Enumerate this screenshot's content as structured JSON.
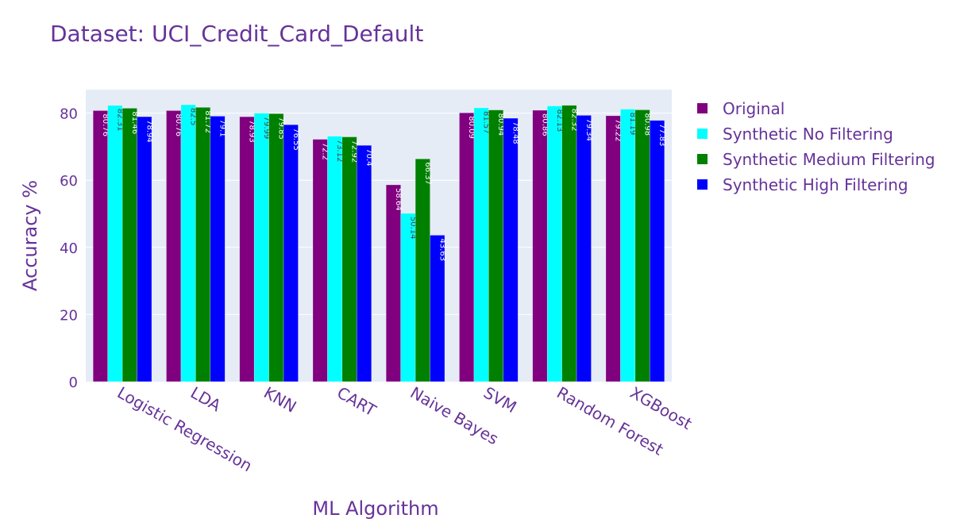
{
  "chart_data": {
    "type": "bar",
    "title": "Dataset: UCI_Credit_Card_Default",
    "xlabel": "ML Algorithm",
    "ylabel": "Accuracy %",
    "ylim": [
      0,
      87
    ],
    "yticks": [
      0,
      20,
      40,
      60,
      80
    ],
    "grid": true,
    "legend_placement": "right",
    "categories": [
      "Logistic Regression",
      "LDA",
      "KNN",
      "CART",
      "Naive Bayes",
      "SVM",
      "Random Forest",
      "XGBoost"
    ],
    "series": [
      {
        "name": "Original",
        "color": "#800080",
        "label_color": "#ffffff",
        "values": [
          80.76,
          80.76,
          78.93,
          72.2,
          58.64,
          80.09,
          80.86,
          79.22
        ]
      },
      {
        "name": "Synthetic No Filtering",
        "color": "#00ffff",
        "label_color": "#444444",
        "values": [
          82.31,
          82.5,
          79.99,
          73.12,
          50.14,
          81.57,
          82.13,
          81.19
        ]
      },
      {
        "name": "Synthetic Medium Filtering",
        "color": "#008000",
        "label_color": "#ffffff",
        "values": [
          81.46,
          81.72,
          79.85,
          72.92,
          66.37,
          80.94,
          82.32,
          80.98
        ]
      },
      {
        "name": "Synthetic High Filtering",
        "color": "#0000ff",
        "label_color": "#ffffff",
        "values": [
          78.94,
          79.1,
          76.55,
          70.4,
          43.63,
          78.48,
          79.34,
          77.83
        ]
      }
    ],
    "plot_background": "#e5ecf6",
    "text_color": "#663399"
  }
}
